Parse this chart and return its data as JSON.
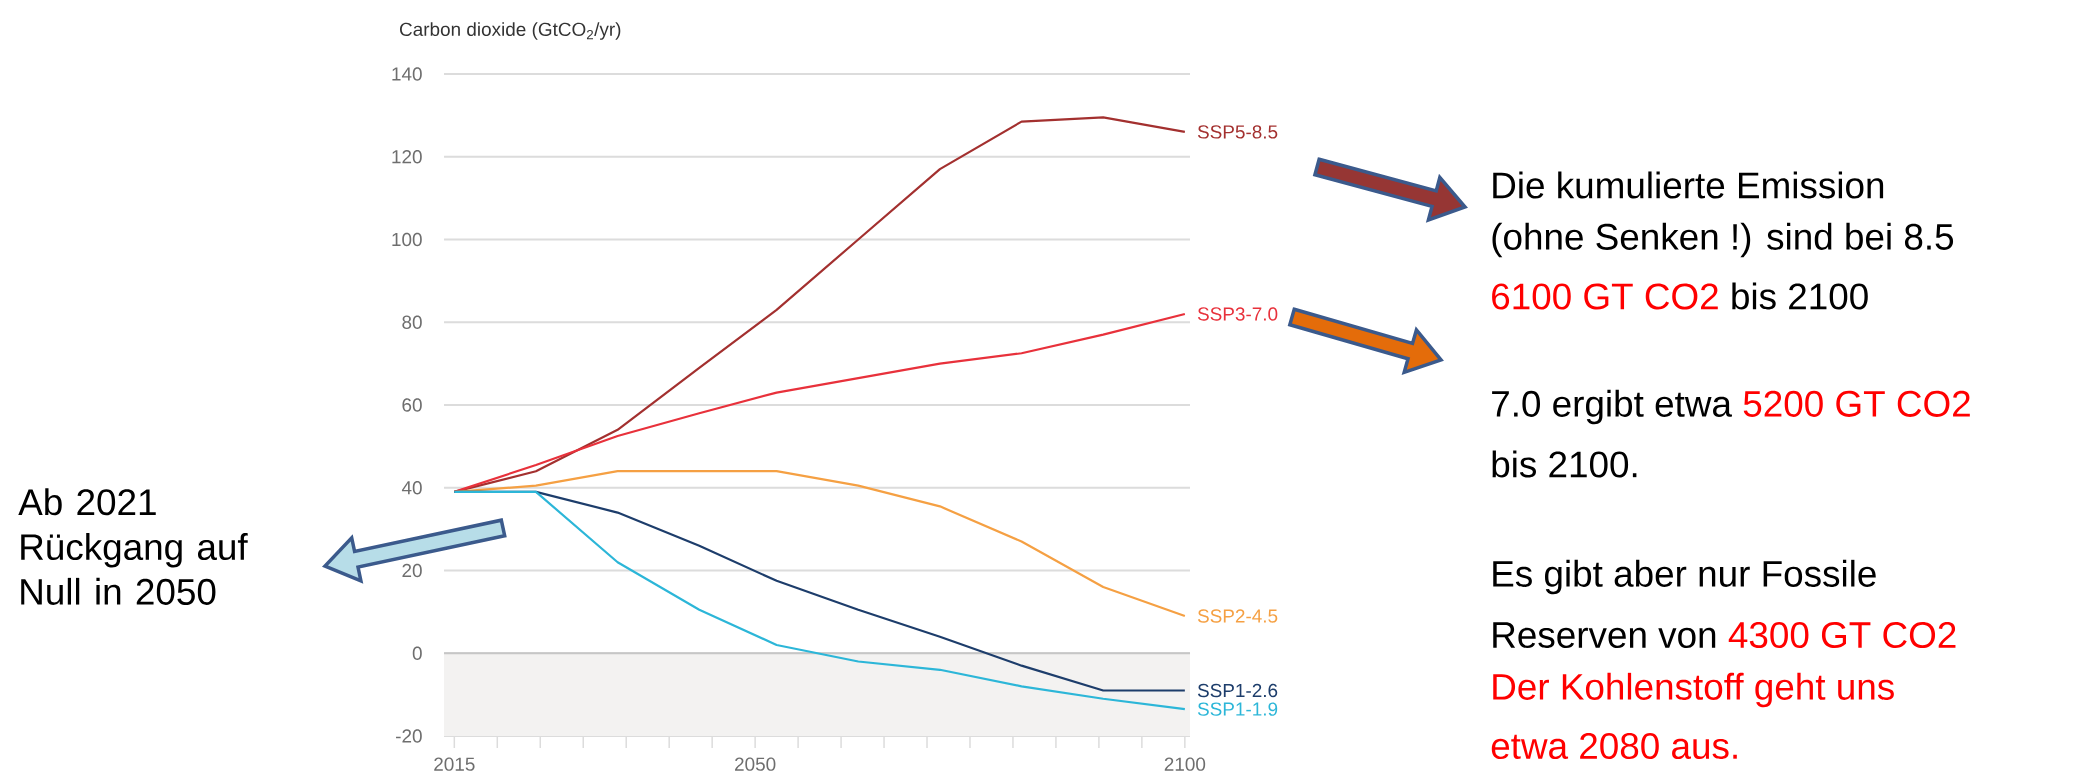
{
  "chart_data": {
    "type": "line",
    "ylabel": "Carbon dioxide (GtCO$_{2}$/yr)",
    "x": [
      2015,
      2024.5,
      2034,
      2043.5,
      2052.5,
      2062,
      2071.5,
      2081,
      2090.5,
      2100
    ],
    "series": [
      {
        "name": "SSP5-8.5",
        "color": "#a3302f",
        "values": [
          39,
          44,
          54,
          69,
          83,
          100,
          117,
          128.5,
          129.5,
          126
        ]
      },
      {
        "name": "SSP3-7.0",
        "color": "#e8313b",
        "values": [
          39,
          45.5,
          52.5,
          58,
          63,
          66.5,
          70,
          72.5,
          77,
          82
        ]
      },
      {
        "name": "SSP2-4.5",
        "color": "#f5a043",
        "values": [
          39,
          40.5,
          44,
          44,
          44,
          40.5,
          35.5,
          27,
          16,
          9
        ]
      },
      {
        "name": "SSP1-2.6",
        "color": "#1d3d6b",
        "values": [
          39,
          39,
          34,
          26,
          17.5,
          10.5,
          4,
          -3,
          -9,
          -9
        ]
      },
      {
        "name": "SSP1-1.9",
        "color": "#2cb6d8",
        "values": [
          39,
          39,
          22,
          10.5,
          2,
          -2,
          -4,
          -8,
          -11,
          -13.5
        ]
      }
    ],
    "xlim": [
      2013.8,
      2100.6
    ],
    "ylim": [
      -20,
      140
    ],
    "xticks": [
      2015,
      {
        "value": 2020,
        "label": null
      },
      {
        "value": 2025,
        "label": null
      },
      {
        "value": 2030,
        "label": null
      },
      {
        "value": 2035,
        "label": null
      },
      {
        "value": 2040,
        "label": null
      },
      {
        "value": 2045,
        "label": null
      },
      2050,
      {
        "value": 2055,
        "label": null
      },
      {
        "value": 2060,
        "label": null
      },
      {
        "value": 2065,
        "label": null
      },
      {
        "value": 2070,
        "label": null
      },
      {
        "value": 2075,
        "label": null
      },
      {
        "value": 2080,
        "label": null
      },
      {
        "value": 2085,
        "label": null
      },
      {
        "value": 2090,
        "label": null
      },
      {
        "value": 2095,
        "label": null
      },
      2100
    ],
    "yticks": [
      -20,
      0,
      20,
      40,
      60,
      80,
      100,
      120,
      140
    ],
    "grid": "y",
    "bands": [
      {
        "axis": "y",
        "from": -20,
        "to": 0,
        "color": "#f3f2f1"
      }
    ],
    "ref_lines": [
      {
        "axis": "y",
        "value": 0,
        "color": "#c6c6c6"
      }
    ],
    "annotations": [
      "Ab 2021 Rückgang auf Null in 2050",
      "Die kumulierte Emission",
      "(ohne Senken !) sind bei 8.5",
      "6100 GT CO2",
      "bis 2100",
      "7.0 ergibt etwa",
      "5200 GT CO2",
      "bis 2100.",
      "Es gibt aber nur Fossile",
      "Reserven von",
      "4300 GT CO2",
      "Der Kohlenstoff geht uns",
      "etwa 2080 aus."
    ]
  }
}
